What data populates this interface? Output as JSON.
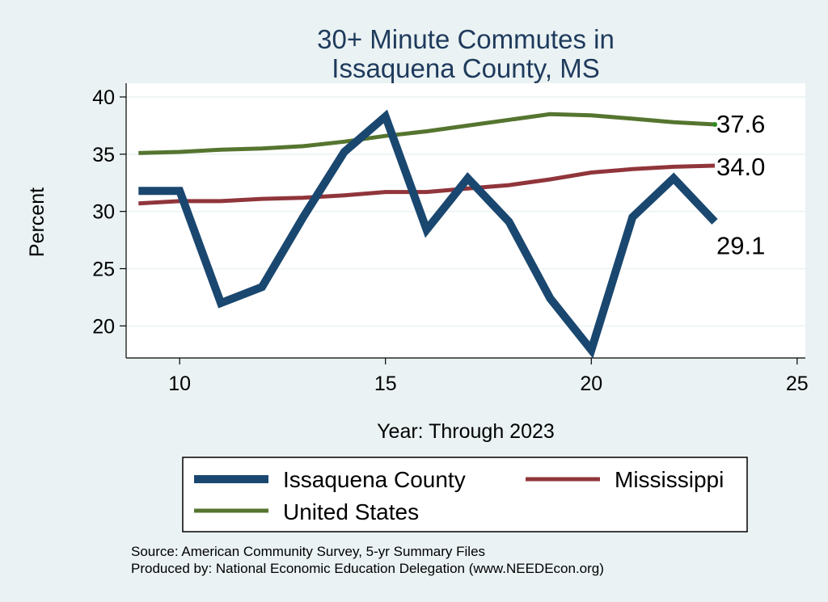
{
  "chart_data": {
    "type": "line",
    "title_lines": [
      "30+ Minute Commutes in",
      "Issaquena County, MS"
    ],
    "xlabel": "Year: Through 2023",
    "ylabel": "Percent",
    "xlim": [
      8.7,
      25.2
    ],
    "ylim": [
      17.2,
      41.2
    ],
    "xticks": [
      10,
      15,
      20,
      25
    ],
    "yticks": [
      20,
      25,
      30,
      35,
      40
    ],
    "x": [
      9,
      10,
      11,
      12,
      13,
      14,
      15,
      16,
      17,
      18,
      19,
      20,
      21,
      22,
      23
    ],
    "series": [
      {
        "name": "Issaquena County",
        "color": "#1a476f",
        "values": [
          31.8,
          31.8,
          22.0,
          23.4,
          29.5,
          35.2,
          38.3,
          28.4,
          32.9,
          29.1,
          22.4,
          17.9,
          29.5,
          32.9,
          29.1
        ],
        "end_label": "29.1"
      },
      {
        "name": "Mississippi",
        "color": "#90353b",
        "values": [
          30.7,
          30.9,
          30.9,
          31.1,
          31.2,
          31.4,
          31.7,
          31.7,
          32.0,
          32.3,
          32.8,
          33.4,
          33.7,
          33.9,
          34.0
        ],
        "end_label": "34.0"
      },
      {
        "name": "United States",
        "color": "#55752f",
        "values": [
          35.1,
          35.2,
          35.4,
          35.5,
          35.7,
          36.1,
          36.6,
          37.0,
          37.5,
          38.0,
          38.5,
          38.4,
          38.1,
          37.8,
          37.6
        ],
        "end_label": "37.6"
      }
    ],
    "grid": true,
    "legend_position": "bottom"
  },
  "footer": {
    "source": "Source: American Community Survey, 5-yr Summary Files",
    "producer": "Produced by: National Economic Education Delegation (www.NEEDEcon.org)"
  }
}
